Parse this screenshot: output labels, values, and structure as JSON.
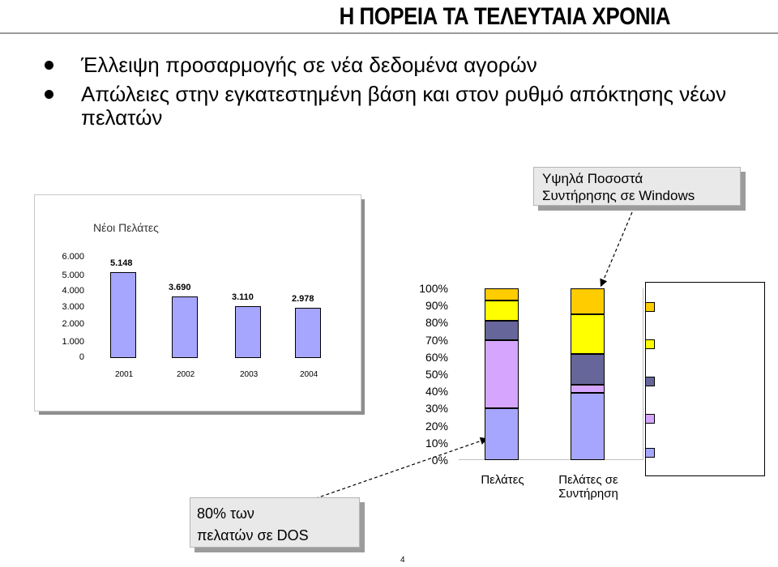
{
  "slide": {
    "title": "Η ΠΟΡΕΙΑ ΤΑ ΤΕΛΕΥΤΑΙΑ ΧΡΟΝΙΑ",
    "bullets": [
      "Έλλειψη προσαρμογής σε νέα δεδομένα αγορών",
      "Απώλειες στην εγκατεστημένη βάση και στον ρυθμό απόκτησης νέων πελατών"
    ],
    "callout_top_line1": "Υψηλά Ποσοστά",
    "callout_top_line2": "Συντήρησης σε Windows",
    "callout_bottom_line1": "80% των",
    "callout_bottom_line2": "πελατών σε DOS",
    "page_number": "4"
  },
  "chart_data": [
    {
      "type": "bar",
      "title": "Νέοι Πελάτες",
      "categories": [
        "2001",
        "2002",
        "2003",
        "2004"
      ],
      "values": [
        5148,
        3690,
        3110,
        2978
      ],
      "value_labels": [
        "5.148",
        "3.690",
        "3.110",
        "2.978"
      ],
      "y_ticks": [
        "6.000",
        "5.000",
        "4.000",
        "3.000",
        "2.000",
        "1.000",
        "0"
      ],
      "ylim": [
        0,
        6000
      ],
      "color": "#a6a6ff"
    },
    {
      "type": "bar",
      "stacked": true,
      "categories": [
        "Πελάτες",
        "Πελάτες σε Συντήρηση"
      ],
      "y_ticks": [
        "100%",
        "90%",
        "80%",
        "70%",
        "60%",
        "50%",
        "40%",
        "30%",
        "20%",
        "10%",
        "0%"
      ],
      "ylim": [
        0,
        100
      ],
      "series": [
        {
          "color": "#a6a6ff",
          "values": [
            30,
            39
          ]
        },
        {
          "color": "#d6a6ff",
          "values": [
            40,
            5
          ]
        },
        {
          "color": "#66669a",
          "values": [
            11,
            18
          ]
        },
        {
          "color": "#ffff00",
          "values": [
            12,
            23
          ]
        },
        {
          "color": "#ffcc00",
          "values": [
            7,
            15
          ]
        }
      ],
      "legend": "right"
    }
  ]
}
